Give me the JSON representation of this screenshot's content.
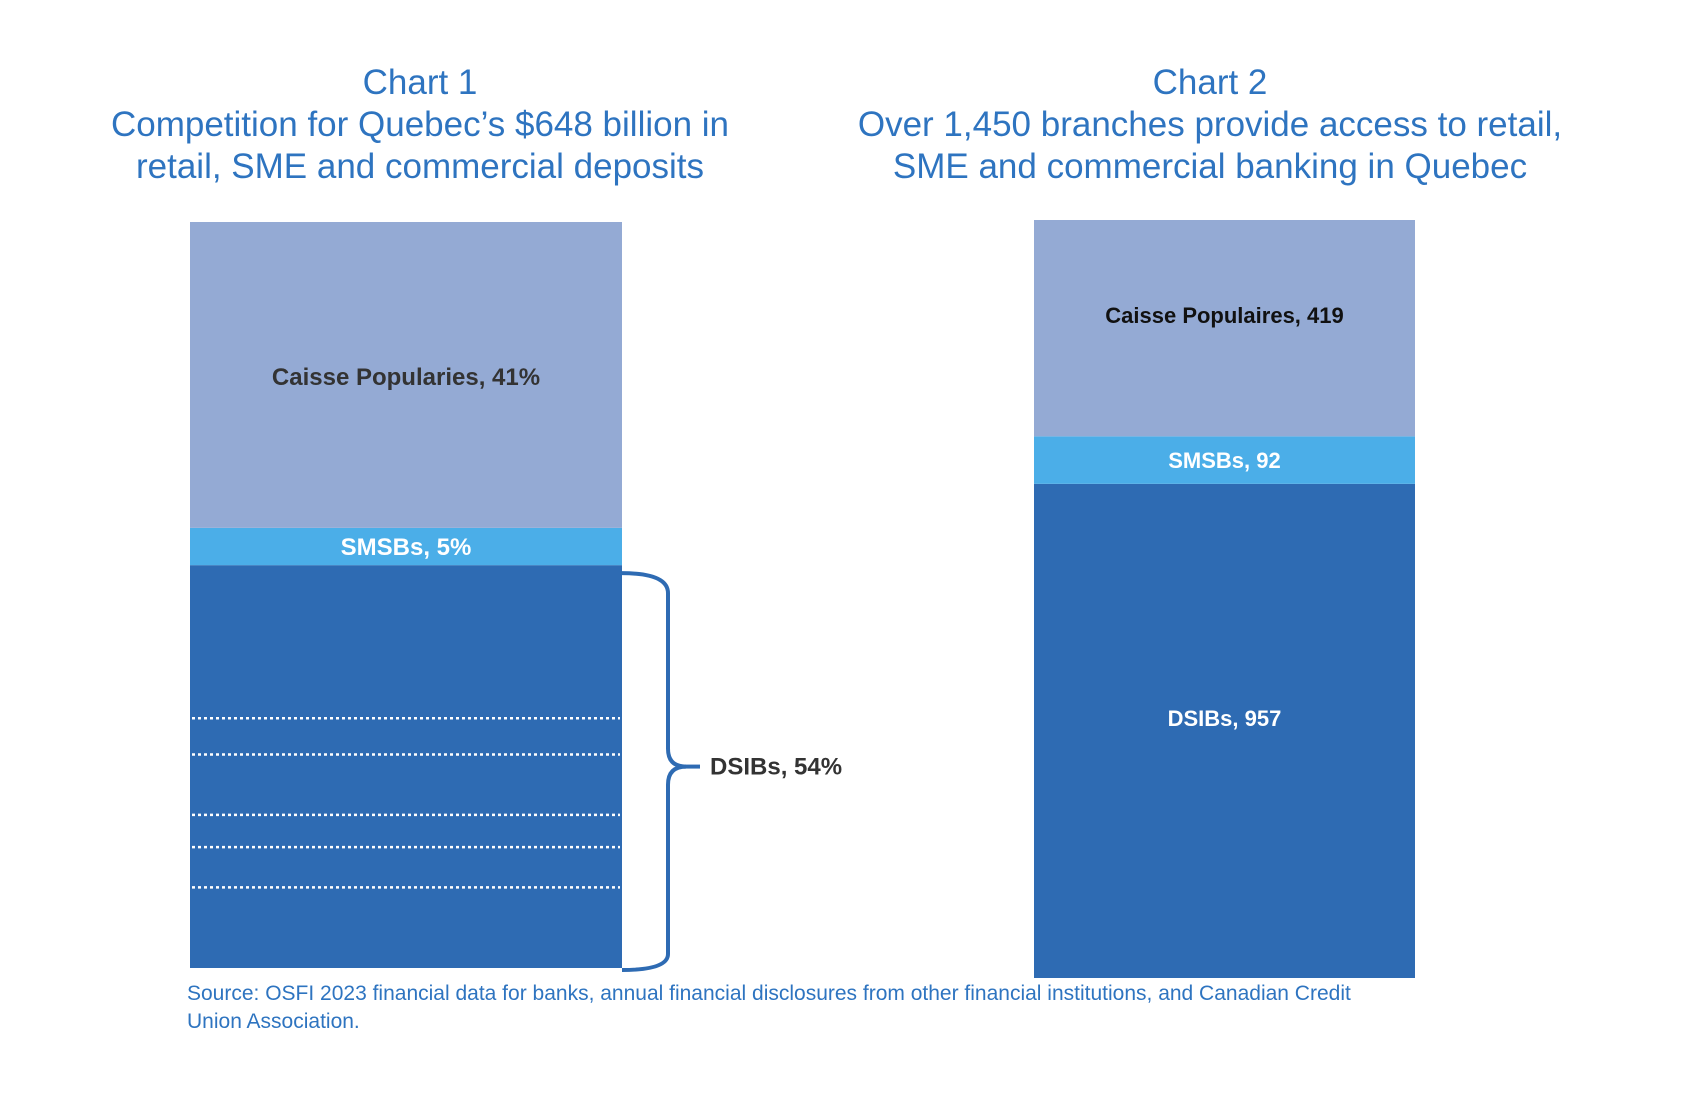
{
  "chart_data": [
    {
      "type": "bar",
      "stacked": true,
      "title": "Chart 1",
      "subtitle_lines": [
        "Competition for Quebec’s $648 billion in",
        "retail, SME and commercial deposits"
      ],
      "unit": "%",
      "segments": [
        {
          "name": "DSIBs",
          "value": 54,
          "label": "DSIBs, 54%",
          "color": "#2e6bb3",
          "label_color": "#333333",
          "dotted_divisions": [
            0.38,
            0.47,
            0.62,
            0.7,
            0.8
          ],
          "label_outside": true
        },
        {
          "name": "SMSBs",
          "value": 5,
          "label": "SMSBs, 5%",
          "color": "#4baee8",
          "label_color": "#ffffff"
        },
        {
          "name": "Caisse Popularies",
          "value": 41,
          "label": "Caisse Popularies, 41%",
          "color": "#94aad4",
          "label_color": "#333333"
        }
      ]
    },
    {
      "type": "bar",
      "stacked": true,
      "title": "Chart 2",
      "subtitle_lines": [
        "Over 1,450 branches provide access to retail,",
        "SME and commercial banking in Quebec"
      ],
      "unit": "branches",
      "segments": [
        {
          "name": "DSIBs",
          "value": 957,
          "label": "DSIBs, 957",
          "color": "#2e6bb3",
          "label_color": "#ffffff"
        },
        {
          "name": "SMSBs",
          "value": 92,
          "label": "SMSBs, 92",
          "color": "#4baee8",
          "label_color": "#ffffff"
        },
        {
          "name": "Caisse Populaires",
          "value": 419,
          "label": "Caisse Populaires, 419",
          "color": "#94aad4",
          "label_color": "#111111"
        }
      ]
    }
  ],
  "source_note": "Source: OSFI 2023 financial data for banks, annual financial disclosures from other financial institutions, and Canadian Credit Union Association.",
  "colors": {
    "title": "#2e74c0",
    "source": "#2e74c0",
    "brace": "#2e6bb3"
  }
}
